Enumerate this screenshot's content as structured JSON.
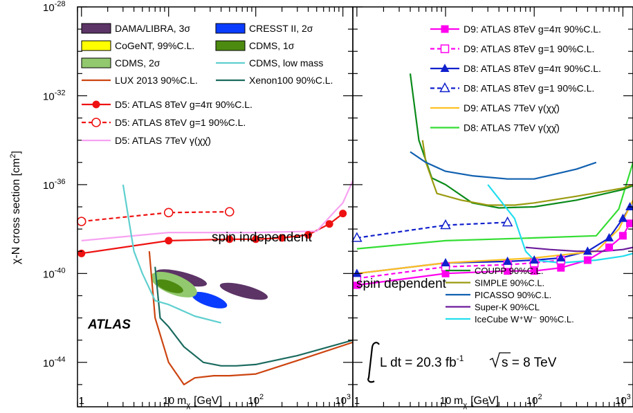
{
  "chart_data": [
    {
      "panel": "left",
      "type": "line",
      "x_scale": "log",
      "y_scale": "log",
      "xlim": [
        0.9,
        1300
      ],
      "ylim": [
        1e-46,
        1e-28
      ],
      "xlabel_main": "m",
      "xlabel_sub": "χ",
      "xlabel_unit": "[GeV]",
      "ylabel": "χ-N cross section [cm",
      "ylabel_sup": "2",
      "ylabel_close": "]",
      "x_ticks": [
        {
          "value": 1,
          "base": "1",
          "exp": ""
        },
        {
          "value": 10,
          "base": "10",
          "exp": ""
        },
        {
          "value": 100,
          "base": "10",
          "exp": "2"
        },
        {
          "value": 1000,
          "base": "10",
          "exp": "3"
        }
      ],
      "y_ticks": [
        {
          "value": 1e-28,
          "base": "10",
          "exp": "-28"
        },
        {
          "value": 1e-32,
          "base": "10",
          "exp": "-32"
        },
        {
          "value": 1e-36,
          "base": "10",
          "exp": "-36"
        },
        {
          "value": 1e-40,
          "base": "10",
          "exp": "-40"
        },
        {
          "value": 1e-44,
          "base": "10",
          "exp": "-44"
        }
      ],
      "annotations": {
        "region": "spin independent",
        "experiment": "ATLAS"
      },
      "legend": [
        {
          "label": "DAMA/LIBRA, 3σ",
          "style": "box",
          "color": "#5c3466"
        },
        {
          "label": "CRESST II, 2σ",
          "style": "box",
          "color": "#0a3cff"
        },
        {
          "label": "CoGeNT, 99%C.L.",
          "style": "box",
          "color": "#ffff00"
        },
        {
          "label": "CDMS, 1σ",
          "style": "box",
          "color": "#4d8a10"
        },
        {
          "label": "CDMS, 2σ",
          "style": "box",
          "color": "#92c86e"
        },
        {
          "label": "CDMS, low mass",
          "style": "line",
          "color": "#5fcfcf"
        },
        {
          "label": "LUX 2013 90%C.L.",
          "style": "line",
          "color": "#cc4410"
        },
        {
          "label": "Xenon100 90%C.L.",
          "style": "line",
          "color": "#1a6a5e"
        },
        {
          "label": "D5: ATLAS 8TeV g=4π 90%C.L.",
          "style": "solid-dot",
          "color": "#ee1111"
        },
        {
          "label": "D5: ATLAS 8TeV g=1 90%C.L.",
          "style": "dash-circle",
          "color": "#ee1111"
        },
        {
          "label": "D5: ATLAS 7TeV γ(χχ̄)",
          "style": "line",
          "color": "#f7a2f2"
        }
      ],
      "series": [
        {
          "name": "D5: ATLAS 8TeV g=4π 90%C.L.",
          "color": "#ee1111",
          "marker": "dot",
          "dash": false,
          "x": [
            1,
            10,
            50,
            100,
            200,
            400,
            700,
            1000
          ],
          "y": [
            8e-40,
            3e-39,
            3.5e-39,
            3.5e-39,
            4e-39,
            5.5e-39,
            1.7e-38,
            5e-38
          ]
        },
        {
          "name": "D5: ATLAS 8TeV g=1 90%C.L.",
          "color": "#ee1111",
          "marker": "circle",
          "dash": true,
          "x": [
            1,
            10,
            50
          ],
          "y": [
            2.2e-38,
            5.5e-38,
            6e-38
          ]
        },
        {
          "name": "D5: ATLAS 7TeV γ(χχ̄)",
          "color": "#f7a2f2",
          "marker": "none",
          "dash": false,
          "x": [
            1,
            10,
            100,
            500,
            800,
            1000,
            1300
          ],
          "y": [
            3e-39,
            7e-39,
            7e-39,
            8e-39,
            6e-38,
            1.5e-37,
            1.5e-36
          ]
        },
        {
          "name": "LUX 2013 90%C.L.",
          "color": "#cc4410",
          "marker": "none",
          "dash": false,
          "x": [
            6,
            7,
            10,
            15,
            20,
            33,
            50,
            100,
            300,
            1300
          ],
          "y": [
            1e-39,
            1e-42,
            1e-44,
            1e-45,
            2e-45,
            2.5e-45,
            2.5e-45,
            3e-45,
            1.2e-44,
            8e-44
          ]
        },
        {
          "name": "Xenon100 90%C.L.",
          "color": "#1a6a5e",
          "marker": "none",
          "dash": false,
          "x": [
            7,
            8,
            10,
            15,
            25,
            40,
            60,
            100,
            300,
            1300
          ],
          "y": [
            2e-40,
            1e-42,
            4e-43,
            5e-44,
            1e-44,
            7e-45,
            7e-45,
            8e-45,
            2e-44,
            1e-43
          ]
        },
        {
          "name": "CDMS, low mass",
          "color": "#5fcfcf",
          "marker": "none",
          "dash": false,
          "x": [
            3,
            4,
            5,
            7,
            10,
            20,
            40
          ],
          "y": [
            1e-36,
            1e-39,
            1e-40,
            6e-42,
            4e-42,
            1.2e-42,
            6e-43
          ]
        }
      ],
      "regions": [
        {
          "name": "DAMA/LIBRA, 3σ (low mass)",
          "color": "#5c3466",
          "x": [
            7,
            28
          ],
          "y": [
            2e-41,
            2e-40
          ]
        },
        {
          "name": "DAMA/LIBRA, 3σ (high mass)",
          "color": "#5c3466",
          "x": [
            38,
            140
          ],
          "y": [
            5e-42,
            5e-41
          ]
        },
        {
          "name": "CRESST II, 2σ (low mass)",
          "color": "#0a3cff",
          "x": [
            9,
            13
          ],
          "y": [
            3e-41,
            1e-40
          ]
        },
        {
          "name": "CRESST II, 2σ (high mass)",
          "color": "#0a3cff",
          "x": [
            18,
            48
          ],
          "y": [
            2e-42,
            2e-41
          ]
        },
        {
          "name": "CoGeNT, 99%C.L.",
          "color": "#ffff00",
          "x": [
            7,
            9.5
          ],
          "y": [
            5e-41,
            1e-40
          ]
        },
        {
          "name": "CDMS, 2σ",
          "color": "#92c86e",
          "x": [
            6,
            22
          ],
          "y": [
            5e-42,
            2e-40
          ]
        },
        {
          "name": "CDMS, 1σ",
          "color": "#4d8a10",
          "x": [
            7,
            15
          ],
          "y": [
            1e-41,
            7e-41
          ]
        }
      ]
    },
    {
      "panel": "right",
      "type": "line",
      "x_scale": "log",
      "y_scale": "log",
      "xlim": [
        0.9,
        1300
      ],
      "ylim": [
        1e-46,
        1e-28
      ],
      "xlabel_main": "m",
      "xlabel_sub": "χ",
      "xlabel_unit": "[GeV]",
      "x_ticks": [
        {
          "value": 1,
          "base": "1",
          "exp": ""
        },
        {
          "value": 10,
          "base": "10",
          "exp": ""
        },
        {
          "value": 100,
          "base": "10",
          "exp": "2"
        },
        {
          "value": 1000,
          "base": "10",
          "exp": "3"
        }
      ],
      "annotations": {
        "region": "spin dependent",
        "lumi_text": "L dt = 20.3 fb",
        "lumi_exp": "-1",
        "energy_text": "s = 8 TeV"
      },
      "legend_top": [
        {
          "label": "D9: ATLAS 8TeV g=4π 90%C.L.",
          "style": "solid-square",
          "color": "#ff00ee"
        },
        {
          "label": "D9: ATLAS 8TeV g=1 90%C.L.",
          "style": "dash-square",
          "color": "#ff00ee"
        },
        {
          "label": "D8: ATLAS 8TeV g=4π 90%C.L.",
          "style": "solid-triangle",
          "color": "#1020cc"
        },
        {
          "label": "D8: ATLAS 8TeV g=1 90%C.L.",
          "style": "dash-triangle",
          "color": "#1020cc"
        },
        {
          "label": "D9: ATLAS 7TeV γ(χχ̄)",
          "style": "line",
          "color": "#ffc020"
        },
        {
          "label": "D8: ATLAS 7TeV γ(χχ̄)",
          "style": "line",
          "color": "#33dd33"
        }
      ],
      "legend_bottom": [
        {
          "label": "COUPP 90%C.L.",
          "color": "#0a8a1a"
        },
        {
          "label": "SIMPLE 90%C.L.",
          "color": "#9a9a10"
        },
        {
          "label": "PICASSO 90%C.L.",
          "color": "#1060b0"
        },
        {
          "label": "Super-K 90%CL",
          "color": "#6a1a9a"
        },
        {
          "label": "IceCube W⁺W⁻ 90%C.L.",
          "color": "#22ddee"
        }
      ],
      "series": [
        {
          "name": "D9: ATLAS 8TeV g=4π 90%C.L.",
          "color": "#ff00ee",
          "marker": "square",
          "dash": false,
          "x": [
            1,
            10,
            50,
            100,
            200,
            400,
            700,
            1000,
            1200
          ],
          "y": [
            3e-41,
            1e-40,
            1.3e-40,
            1.3e-40,
            1.8e-40,
            4e-40,
            1.5e-39,
            5e-39,
            1.8e-38
          ]
        },
        {
          "name": "D9: ATLAS 8TeV g=1 90%C.L.",
          "color": "#ff00ee",
          "marker": "open-square",
          "dash": true,
          "x": [
            1,
            10,
            50,
            100,
            200
          ],
          "y": [
            6e-41,
            2e-40,
            2.5e-40,
            3e-40,
            4e-40
          ]
        },
        {
          "name": "D8: ATLAS 8TeV g=4π 90%C.L.",
          "color": "#1020cc",
          "marker": "triangle",
          "dash": false,
          "x": [
            1,
            10,
            50,
            100,
            200,
            400,
            700,
            1000,
            1200
          ],
          "y": [
            1e-40,
            3e-40,
            3.5e-40,
            4e-40,
            5e-40,
            1e-39,
            4e-39,
            3e-38,
            1e-37
          ]
        },
        {
          "name": "D8: ATLAS 8TeV g=1 90%C.L.",
          "color": "#1020cc",
          "marker": "open-triangle",
          "dash": true,
          "x": [
            1,
            10,
            50
          ],
          "y": [
            4e-39,
            1.5e-38,
            2e-38
          ]
        },
        {
          "name": "D9: ATLAS 7TeV γ(χχ̄)",
          "color": "#ffc020",
          "marker": "none",
          "dash": false,
          "x": [
            1,
            10,
            100,
            500,
            900,
            1300
          ],
          "y": [
            1e-40,
            3e-40,
            5e-40,
            1e-39,
            1e-38,
            2e-37
          ]
        },
        {
          "name": "D8: ATLAS 7TeV γ(χχ̄)",
          "color": "#33dd33",
          "marker": "none",
          "dash": false,
          "x": [
            1,
            10,
            100,
            500,
            900,
            1300
          ],
          "y": [
            1.3e-39,
            3e-39,
            4e-39,
            5e-39,
            8e-38,
            1e-35
          ]
        },
        {
          "name": "COUPP 90%C.L.",
          "color": "#0a8a1a",
          "marker": "none",
          "dash": false,
          "x": [
            4,
            5,
            7,
            10,
            20,
            40,
            100,
            300,
            1000,
            1300
          ],
          "y": [
            1e-31,
            1e-34,
            2e-36,
            1e-36,
            1.5e-37,
            9e-38,
            1e-37,
            2e-37,
            6e-37,
            9e-37
          ]
        },
        {
          "name": "SIMPLE 90%C.L.",
          "color": "#9a9a10",
          "marker": "none",
          "dash": false,
          "x": [
            5.5,
            6,
            8,
            15,
            30,
            60,
            100,
            300,
            1000,
            1300
          ],
          "y": [
            1e-34,
            1e-35,
            4e-37,
            2e-37,
            1.2e-37,
            1.2e-37,
            1.5e-37,
            3e-37,
            7e-37,
            1e-36
          ]
        },
        {
          "name": "PICASSO 90%C.L.",
          "color": "#1060b0",
          "marker": "none",
          "dash": false,
          "x": [
            4,
            6,
            10,
            20,
            50,
            100,
            300,
            500
          ],
          "y": [
            3e-35,
            1e-35,
            4e-36,
            2.5e-36,
            1.8e-36,
            1.8e-36,
            5e-36,
            1e-35
          ]
        },
        {
          "name": "Super-K 90%CL",
          "color": "#6a1a9a",
          "marker": "none",
          "dash": false,
          "x": [
            80,
            150,
            300,
            600,
            1000,
            1300
          ],
          "y": [
            1.5e-39,
            1.2e-39,
            1e-39,
            1e-39,
            1.2e-39,
            1.5e-39
          ]
        },
        {
          "name": "IceCube W⁺W⁻ 90%C.L.",
          "color": "#22ddee",
          "marker": "none",
          "dash": false,
          "x": [
            30,
            60,
            80,
            100,
            200,
            500,
            1000,
            1300
          ],
          "y": [
            1e-36,
            3e-38,
            1e-39,
            4e-40,
            3e-40,
            4e-40,
            6e-40,
            8e-40
          ]
        }
      ]
    }
  ]
}
